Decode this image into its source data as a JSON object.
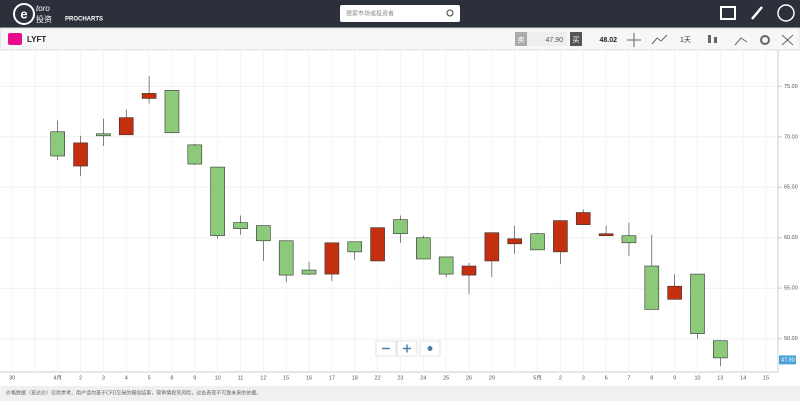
{
  "header": {
    "logo": "toro",
    "logo_sub": "投资",
    "product": "PROCHARTS",
    "search_placeholder": "搜索市场或投资者"
  },
  "toolbar": {
    "symbol": "LYFT",
    "sell_label": "卖",
    "sell_price": "47.90",
    "buy_label": "买",
    "buy_price": "48.02",
    "interval": "1天"
  },
  "chart_data": {
    "type": "candlestick",
    "categories": [
      "30",
      null,
      "4月",
      "2",
      "3",
      "4",
      "5",
      "8",
      "9",
      "10",
      "11",
      "12",
      "15",
      "16",
      "17",
      "18",
      "22",
      "23",
      "24",
      "25",
      "26",
      "29",
      null,
      "5月",
      "2",
      "3",
      "6",
      "7",
      "8",
      "9",
      "10",
      "13",
      "14",
      "15"
    ],
    "open": [
      null,
      null,
      70.5,
      67.1,
      70.3,
      70.2,
      73.8,
      74.6,
      69.2,
      67.0,
      61.5,
      61.2,
      59.7,
      56.8,
      56.4,
      59.6,
      57.7,
      61.8,
      60.0,
      58.1,
      56.3,
      57.7,
      59.4,
      60.4,
      58.6,
      61.3,
      60.2,
      60.2,
      57.2,
      53.9,
      56.4,
      49.8,
      null,
      null
    ],
    "high": [
      null,
      null,
      71.6,
      70.1,
      71.8,
      72.7,
      76.0,
      74.6,
      69.3,
      67.0,
      62.2,
      61.2,
      59.7,
      57.6,
      59.5,
      59.6,
      61.0,
      62.2,
      60.2,
      58.1,
      57.5,
      60.5,
      61.2,
      60.5,
      61.7,
      62.8,
      61.2,
      61.5,
      60.3,
      56.4,
      56.4,
      49.8,
      null,
      null
    ],
    "low": [
      null,
      null,
      67.7,
      66.1,
      69.1,
      70.2,
      73.3,
      70.4,
      67.2,
      59.9,
      60.3,
      57.7,
      55.6,
      56.3,
      55.7,
      57.8,
      57.7,
      59.5,
      57.9,
      56.1,
      54.4,
      56.1,
      58.4,
      58.8,
      57.4,
      61.3,
      60.2,
      58.2,
      52.9,
      53.9,
      50.0,
      47.3,
      null,
      null
    ],
    "close": [
      null,
      null,
      68.1,
      69.4,
      70.1,
      71.9,
      74.3,
      70.4,
      67.3,
      60.2,
      60.9,
      59.7,
      56.3,
      56.4,
      59.5,
      58.6,
      61.0,
      60.4,
      57.9,
      56.4,
      57.2,
      60.5,
      59.9,
      58.8,
      61.7,
      62.5,
      60.4,
      59.5,
      52.9,
      55.2,
      50.5,
      48.1,
      null,
      null
    ],
    "up_color": "#c4300f",
    "down_color": "#8cc97a",
    "ylim": [
      46.7,
      78.6
    ],
    "yticks": [
      {
        "value": 50,
        "label": "50.00"
      },
      {
        "value": 55,
        "label": "55.00"
      },
      {
        "value": 60,
        "label": "60.00"
      },
      {
        "value": 65,
        "label": "65.00"
      },
      {
        "value": 70,
        "label": "70.00"
      },
      {
        "value": 75,
        "label": "75.00"
      }
    ],
    "last_price": {
      "value": 47.9,
      "label": "47.90"
    },
    "grid": true
  },
  "footer": {
    "disclaimer": "价格数据（直达价）仅供参考。用户请勿基于CFD交易的模拟结果，需审慎投资风险，过去表现不可靠未来的依据。"
  }
}
